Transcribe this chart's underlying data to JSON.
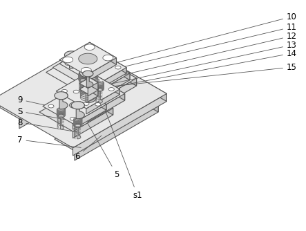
{
  "bg_color": "#ffffff",
  "line_color": "#555555",
  "line_width": 0.8,
  "label_fontsize": 8.5,
  "figsize": [
    4.43,
    3.34
  ],
  "dpi": 100,
  "face_colors": {
    "top": "#e8e8e8",
    "front": "#d0d0d0",
    "right": "#c0c0c0",
    "dark": "#b0b0b0",
    "light": "#f0f0f0",
    "mid": "#d8d8d8"
  }
}
